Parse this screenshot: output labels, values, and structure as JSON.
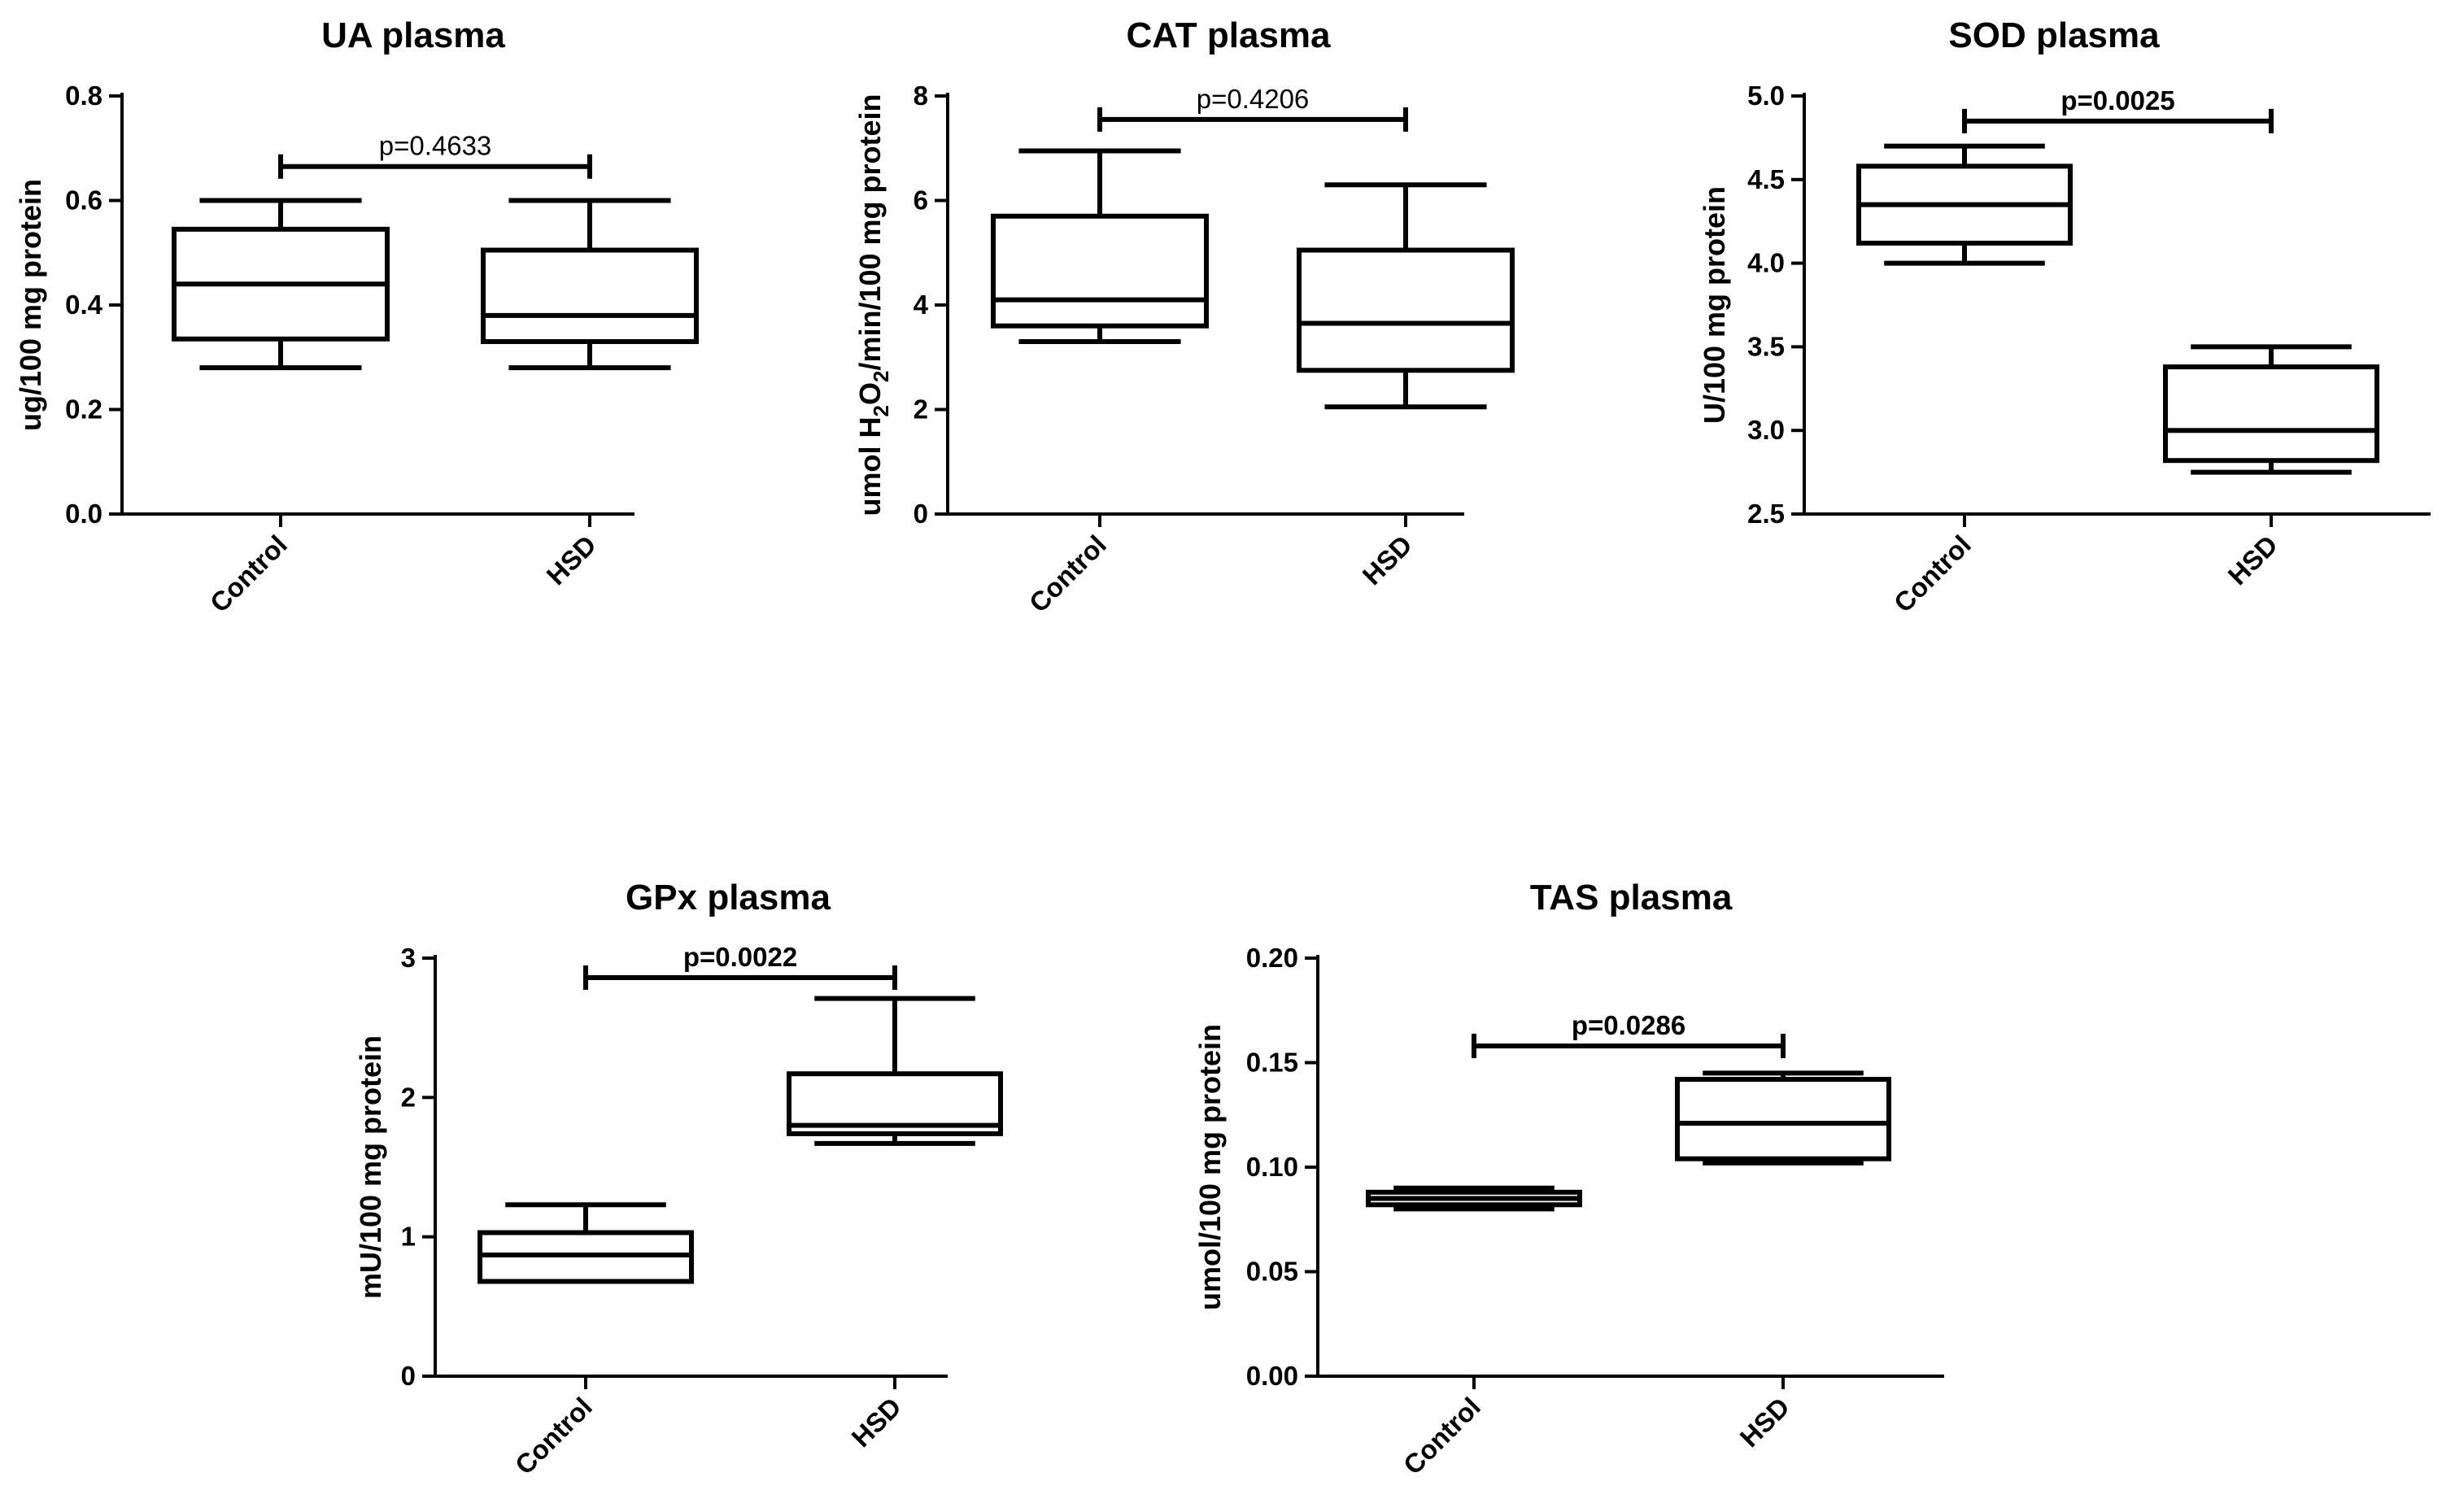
{
  "chart_data": [
    {
      "type": "box",
      "title": "UA plasma",
      "ylabel": "ug/100 mg protein",
      "ylim": [
        0,
        0.8
      ],
      "yticks": [
        "0.0",
        "0.2",
        "0.4",
        "0.6",
        "0.8"
      ],
      "categories": [
        "Control",
        "HSD"
      ],
      "boxes": [
        {
          "name": "Control",
          "min": 0.28,
          "q1": 0.335,
          "median": 0.44,
          "q3": 0.545,
          "max": 0.6
        },
        {
          "name": "HSD",
          "min": 0.28,
          "q1": 0.33,
          "median": 0.38,
          "q3": 0.505,
          "max": 0.6
        }
      ],
      "comparison": {
        "label": "p=0.4633",
        "y": 0.665,
        "bold": false
      }
    },
    {
      "type": "box",
      "title": "CAT plasma",
      "ylabel": "umol H2O2/min/100 mg protein",
      "ylabel_parts": {
        "pre": "umol H",
        "sub1": "2",
        "mid": "O",
        "sub2": "2",
        "post": "/min/100 mg protein"
      },
      "ylim": [
        0,
        8
      ],
      "yticks": [
        "0",
        "2",
        "4",
        "6",
        "8"
      ],
      "categories": [
        "Control",
        "HSD"
      ],
      "boxes": [
        {
          "name": "Control",
          "min": 3.3,
          "q1": 3.6,
          "median": 4.1,
          "q3": 5.7,
          "max": 6.95
        },
        {
          "name": "HSD",
          "min": 2.05,
          "q1": 2.75,
          "median": 3.65,
          "q3": 5.05,
          "max": 6.3
        }
      ],
      "comparison": {
        "label": "p=0.4206",
        "y": 7.55,
        "bold": false
      }
    },
    {
      "type": "box",
      "title": "SOD plasma",
      "ylabel": "U/100 mg protein",
      "ylim": [
        2.5,
        5.0
      ],
      "yticks": [
        "2.5",
        "3.0",
        "3.5",
        "4.0",
        "4.5",
        "5.0"
      ],
      "categories": [
        "Control",
        "HSD"
      ],
      "boxes": [
        {
          "name": "Control",
          "min": 4.0,
          "q1": 4.12,
          "median": 4.35,
          "q3": 4.58,
          "max": 4.7
        },
        {
          "name": "HSD",
          "min": 2.75,
          "q1": 2.82,
          "median": 3.0,
          "q3": 3.38,
          "max": 3.5
        }
      ],
      "comparison": {
        "label": "p=0.0025",
        "y": 4.85,
        "bold": true
      }
    },
    {
      "type": "box",
      "title": "GPx plasma",
      "ylabel": "mU/100 mg protein",
      "ylim": [
        0,
        3
      ],
      "yticks": [
        "0",
        "1",
        "2",
        "3"
      ],
      "categories": [
        "Control",
        "HSD"
      ],
      "boxes": [
        {
          "name": "Control",
          "min": 0.68,
          "q1": 0.68,
          "median": 0.87,
          "q3": 1.03,
          "max": 1.23
        },
        {
          "name": "HSD",
          "min": 1.67,
          "q1": 1.74,
          "median": 1.8,
          "q3": 2.17,
          "max": 2.71
        }
      ],
      "comparison": {
        "label": "p=0.0022",
        "y": 2.86,
        "bold": true
      }
    },
    {
      "type": "box",
      "title": "TAS plasma",
      "ylabel": "umol/100 mg protein",
      "ylim": [
        0,
        0.2
      ],
      "yticks": [
        "0.00",
        "0.05",
        "0.10",
        "0.15",
        "0.20"
      ],
      "categories": [
        "Control",
        "HSD"
      ],
      "boxes": [
        {
          "name": "Control",
          "min": 0.08,
          "q1": 0.082,
          "median": 0.085,
          "q3": 0.088,
          "max": 0.09
        },
        {
          "name": "HSD",
          "min": 0.102,
          "q1": 0.104,
          "median": 0.121,
          "q3": 0.142,
          "max": 0.145
        }
      ],
      "comparison": {
        "label": "p=0.0286",
        "y": 0.158,
        "bold": true
      }
    }
  ]
}
